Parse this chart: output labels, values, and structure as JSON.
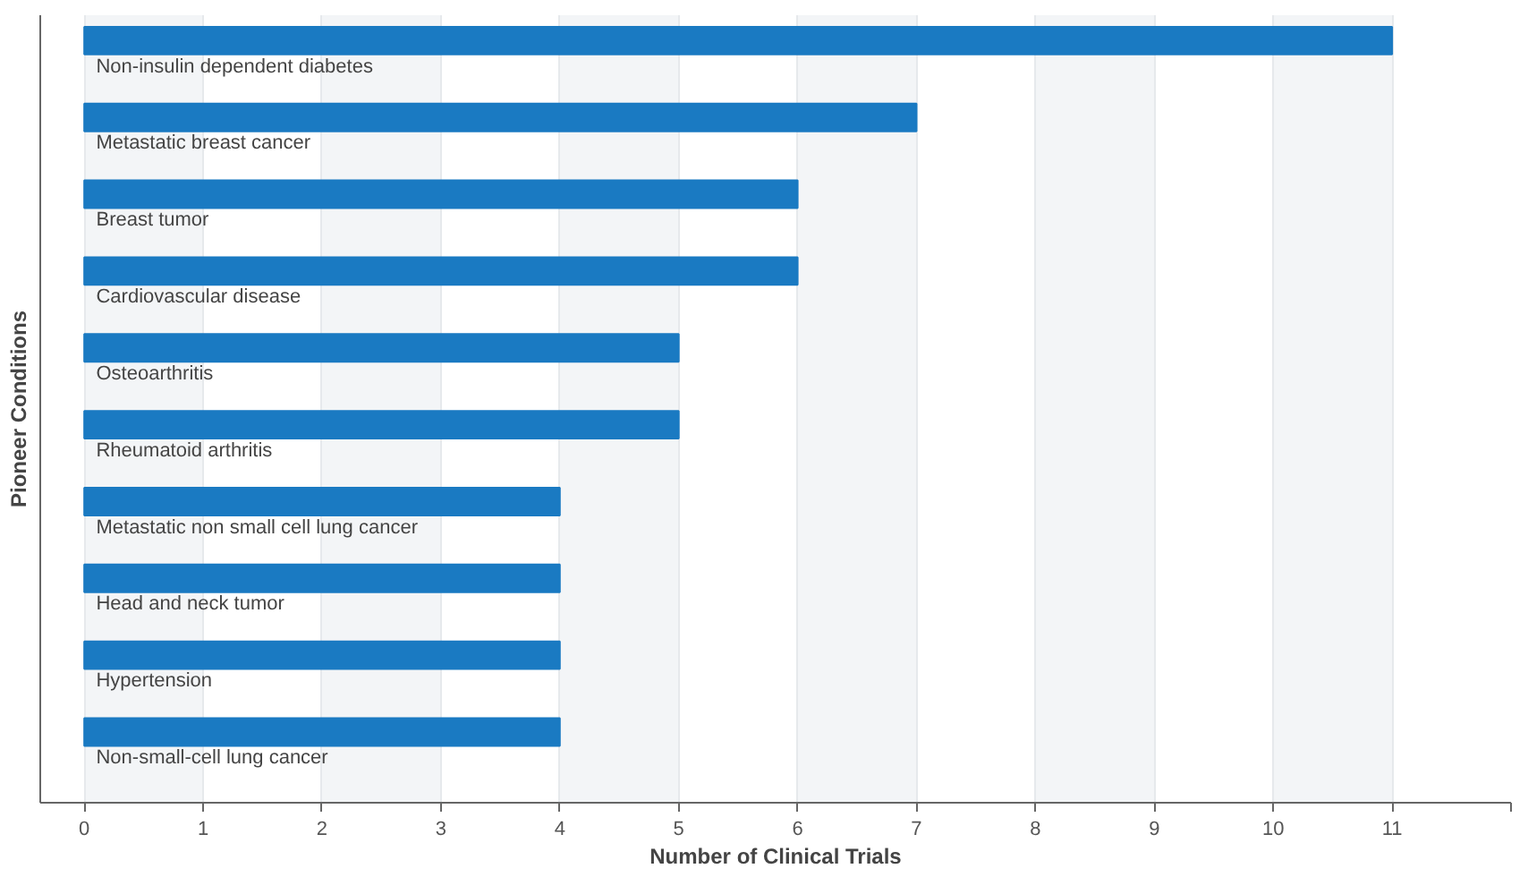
{
  "chart_data": {
    "type": "bar",
    "orientation": "horizontal",
    "xlabel": "Number of Clinical Trials",
    "ylabel": "Pioneer Conditions",
    "categories": [
      "Non-insulin dependent diabetes",
      "Metastatic breast cancer",
      "Breast tumor",
      "Cardiovascular disease",
      "Osteoarthritis",
      "Rheumatoid arthritis",
      "Metastatic non small cell lung cancer",
      "Head and neck tumor",
      "Hypertension",
      "Non-small-cell lung cancer"
    ],
    "values": [
      11,
      7,
      6,
      6,
      5,
      5,
      4,
      4,
      4,
      4
    ],
    "color": "#1a7ac2",
    "xlim": [
      -0.37,
      12
    ],
    "xticks": [
      0,
      1,
      2,
      3,
      4,
      5,
      6,
      7,
      8,
      9,
      10,
      11,
      {
        "value": 12,
        "label": null
      }
    ],
    "grid": "x",
    "tick_labels": "x"
  }
}
